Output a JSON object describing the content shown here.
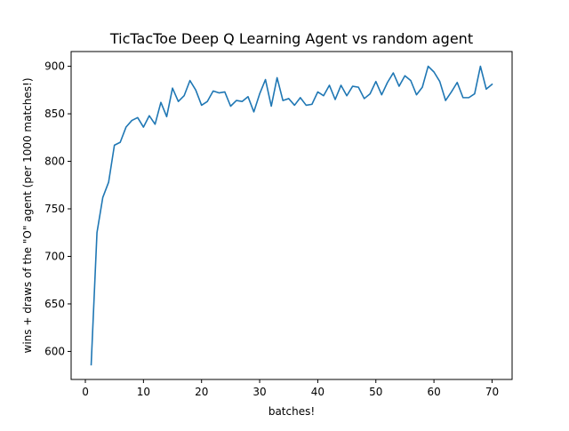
{
  "chart_data": {
    "type": "line",
    "title": "TicTacToe Deep Q Learning Agent vs random agent",
    "xlabel": "batches!",
    "ylabel": "wins + draws of the \"O\" agent (per 1000 matches!)",
    "xlim": [
      -2.45,
      73.45
    ],
    "ylim": [
      570.5,
      915.5
    ],
    "xticks": [
      0,
      10,
      20,
      30,
      40,
      50,
      60,
      70
    ],
    "yticks": [
      600,
      650,
      700,
      750,
      800,
      850,
      900
    ],
    "grid": false,
    "series": [
      {
        "color": "#1f77b4",
        "x": [
          1,
          2,
          3,
          4,
          5,
          6,
          7,
          8,
          9,
          10,
          11,
          12,
          13,
          14,
          15,
          16,
          17,
          18,
          19,
          20,
          21,
          22,
          23,
          24,
          25,
          26,
          27,
          28,
          29,
          30,
          31,
          32,
          33,
          34,
          35,
          36,
          37,
          38,
          39,
          40,
          41,
          42,
          43,
          44,
          45,
          46,
          47,
          48,
          49,
          50,
          51,
          52,
          53,
          54,
          55,
          56,
          57,
          58,
          59,
          60,
          61,
          62,
          63,
          64,
          65,
          66,
          67,
          68,
          69,
          70
        ],
        "values": [
          586,
          725,
          762,
          778,
          817,
          820,
          836,
          843,
          846,
          836,
          848,
          839,
          862,
          847,
          877,
          863,
          869,
          885,
          875,
          859,
          863,
          874,
          872,
          873,
          858,
          864,
          863,
          868,
          852,
          871,
          886,
          858,
          888,
          864,
          866,
          859,
          867,
          859,
          860,
          873,
          869,
          880,
          865,
          880,
          869,
          879,
          878,
          866,
          871,
          884,
          870,
          883,
          893,
          879,
          890,
          885,
          870,
          878,
          900,
          894,
          884,
          864,
          873,
          883,
          867,
          867,
          871,
          900,
          876,
          881
        ]
      }
    ]
  }
}
